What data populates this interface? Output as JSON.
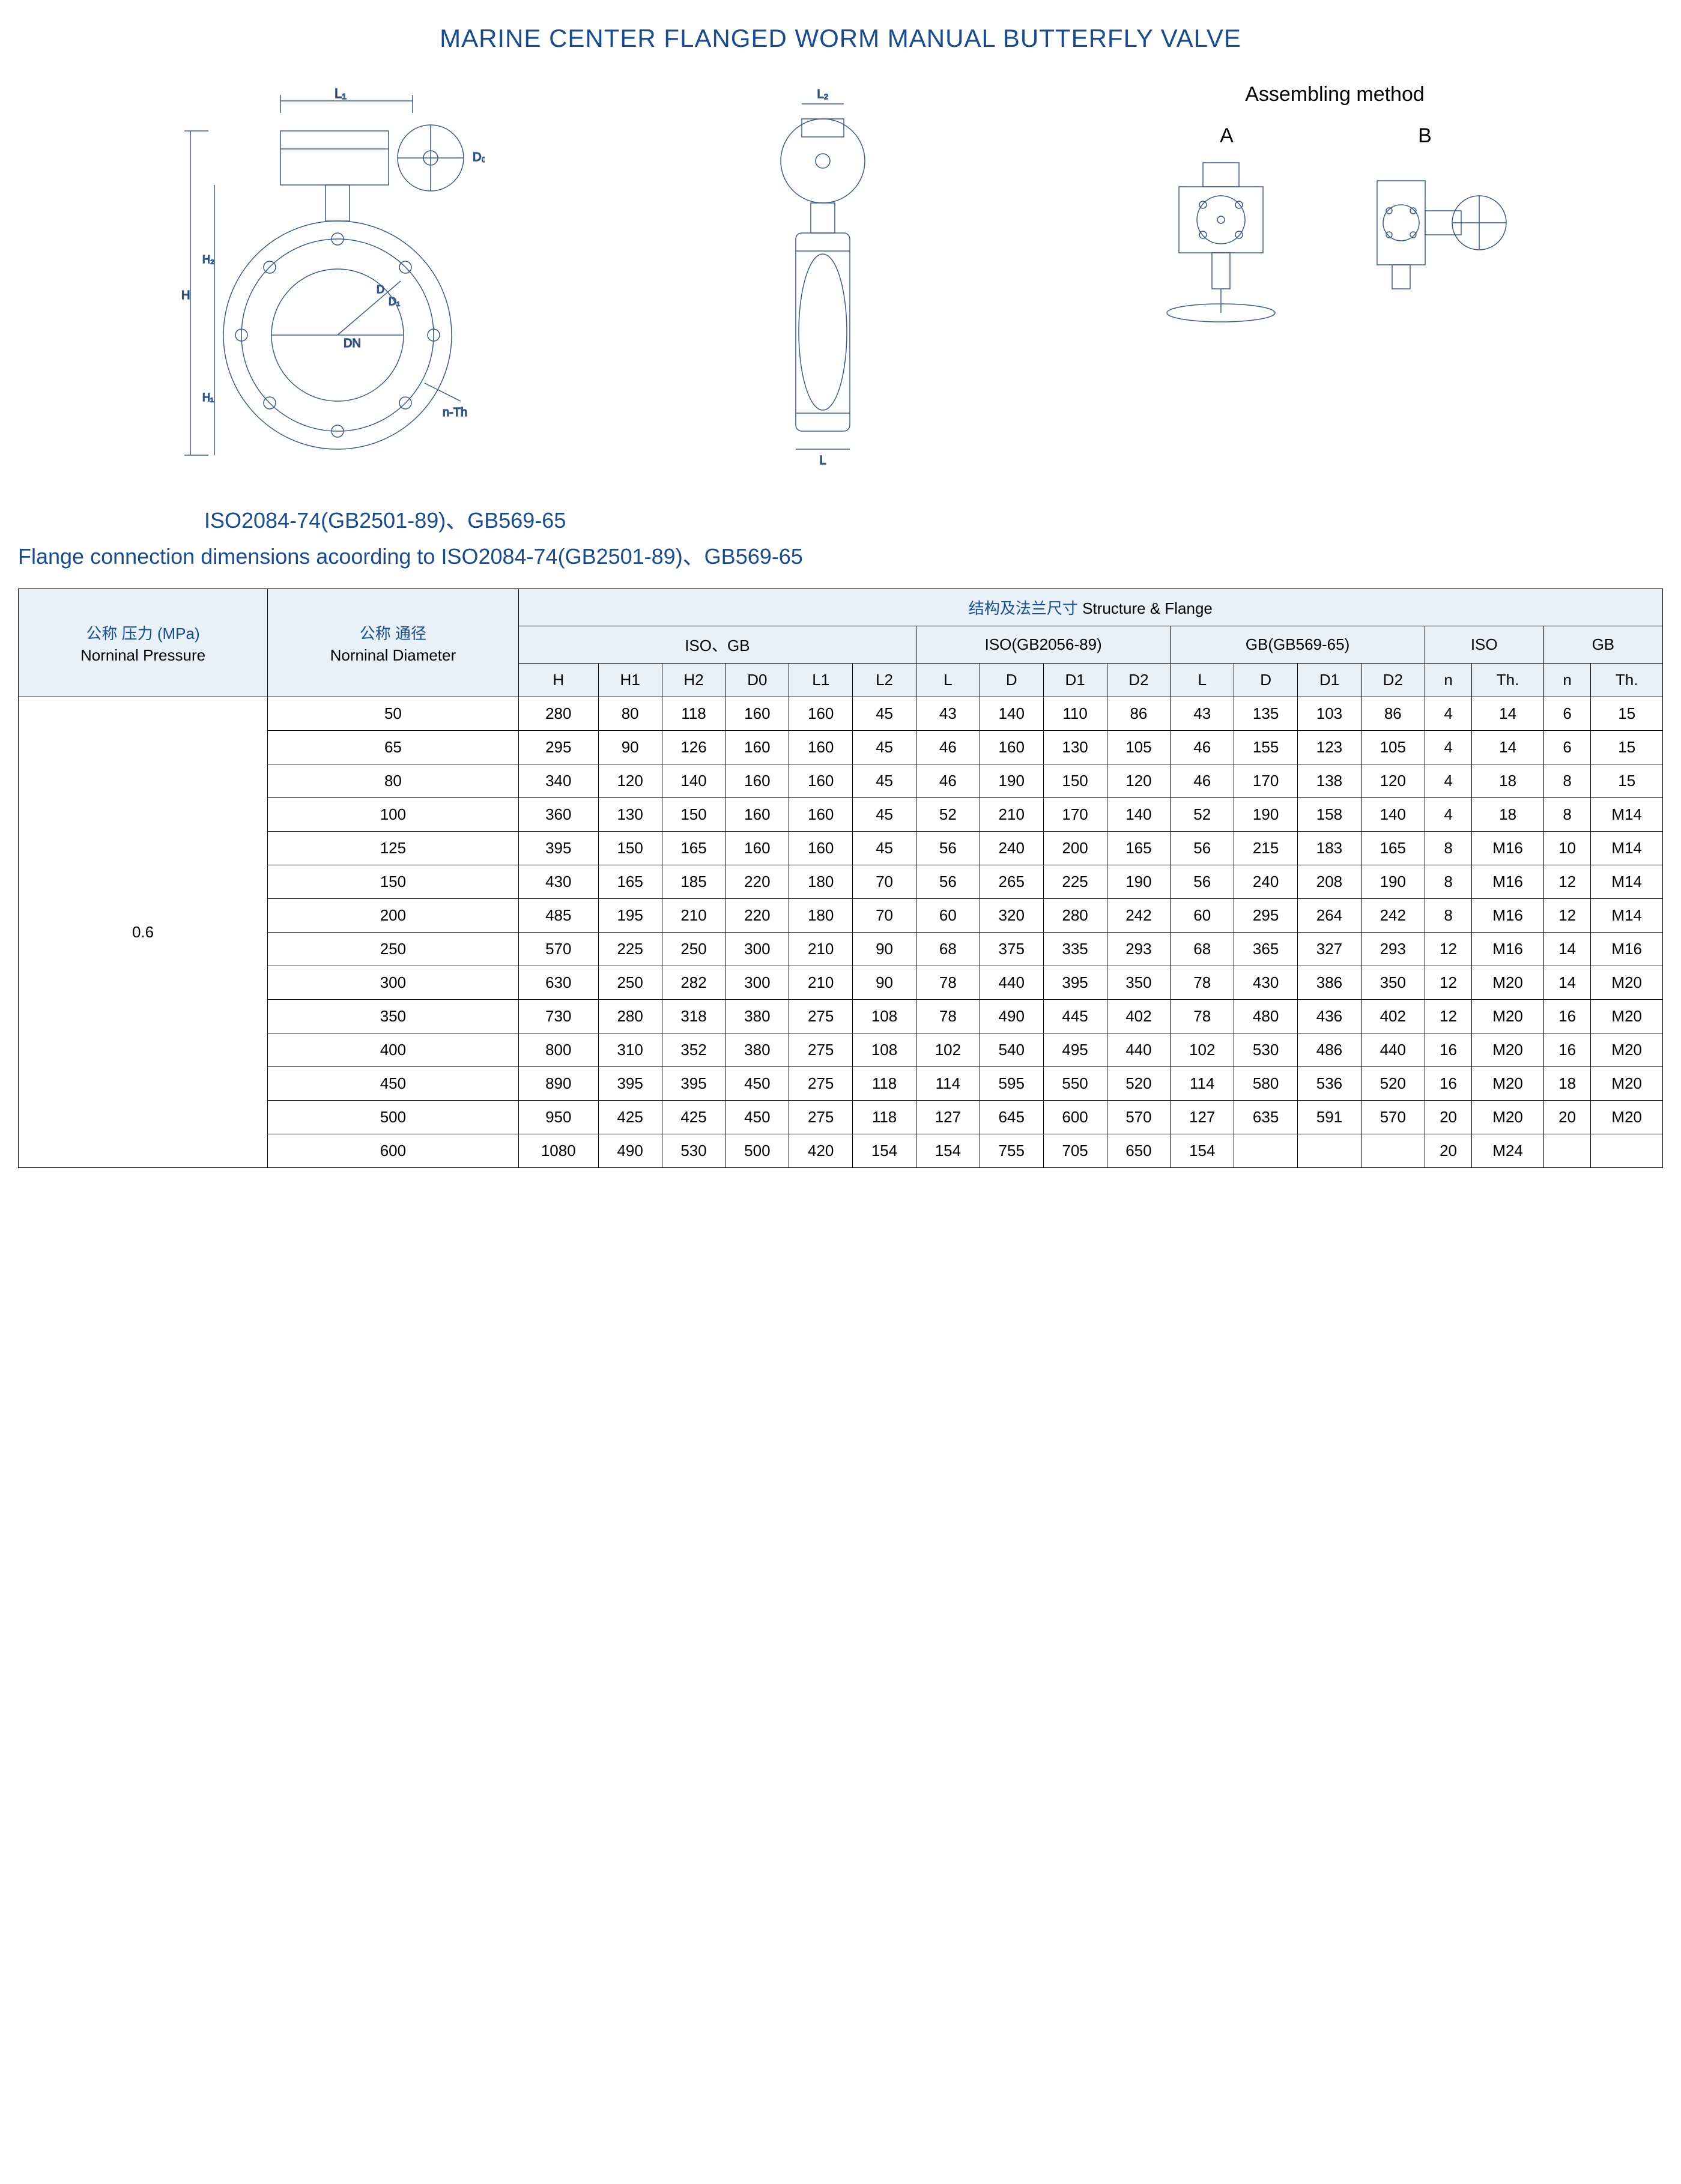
{
  "title": "MARINE CENTER FLANGED WORM MANUAL BUTTERFLY VALVE",
  "assembling": {
    "title": "Assembling method",
    "labelA": "A",
    "labelB": "B"
  },
  "diagram_labels": {
    "L1": "L₁",
    "L2": "L₂",
    "D0": "D₀",
    "H": "H",
    "H1": "H₁",
    "H2": "H₂",
    "D": "D",
    "D1": "D₁",
    "DN": "DN",
    "nTh": "n-Th",
    "L": "L"
  },
  "standards_line": "ISO2084-74(GB2501-89)、GB569-65",
  "flange_line": "Flange connection dimensions acoording to ISO2084-74(GB2501-89)、GB569-65",
  "table": {
    "headers": {
      "pressure_cn": "公称 压力 (MPa)",
      "pressure_en": "Norninal Pressure",
      "diameter_cn": "公称 通径",
      "diameter_en": "Norninal Diameter",
      "structure_flange_cn": "结构及法兰尺寸",
      "structure_flange_en": "Structure & Flange",
      "isoGb": "ISO、GB",
      "iso2056": "ISO(GB2056-89)",
      "gb569": "GB(GB569-65)",
      "iso": "ISO",
      "gb": "GB",
      "cols": [
        "H",
        "H1",
        "H2",
        "D0",
        "L1",
        "L2",
        "L",
        "D",
        "D1",
        "D2",
        "L",
        "D",
        "D1",
        "D2",
        "n",
        "Th.",
        "n",
        "Th."
      ]
    },
    "pressure_value": "0.6",
    "rows": [
      {
        "dia": "50",
        "v": [
          "280",
          "80",
          "118",
          "160",
          "160",
          "45",
          "43",
          "140",
          "110",
          "86",
          "43",
          "135",
          "103",
          "86",
          "4",
          "14",
          "6",
          "15"
        ]
      },
      {
        "dia": "65",
        "v": [
          "295",
          "90",
          "126",
          "160",
          "160",
          "45",
          "46",
          "160",
          "130",
          "105",
          "46",
          "155",
          "123",
          "105",
          "4",
          "14",
          "6",
          "15"
        ]
      },
      {
        "dia": "80",
        "v": [
          "340",
          "120",
          "140",
          "160",
          "160",
          "45",
          "46",
          "190",
          "150",
          "120",
          "46",
          "170",
          "138",
          "120",
          "4",
          "18",
          "8",
          "15"
        ]
      },
      {
        "dia": "100",
        "v": [
          "360",
          "130",
          "150",
          "160",
          "160",
          "45",
          "52",
          "210",
          "170",
          "140",
          "52",
          "190",
          "158",
          "140",
          "4",
          "18",
          "8",
          "M14"
        ]
      },
      {
        "dia": "125",
        "v": [
          "395",
          "150",
          "165",
          "160",
          "160",
          "45",
          "56",
          "240",
          "200",
          "165",
          "56",
          "215",
          "183",
          "165",
          "8",
          "M16",
          "10",
          "M14"
        ]
      },
      {
        "dia": "150",
        "v": [
          "430",
          "165",
          "185",
          "220",
          "180",
          "70",
          "56",
          "265",
          "225",
          "190",
          "56",
          "240",
          "208",
          "190",
          "8",
          "M16",
          "12",
          "M14"
        ]
      },
      {
        "dia": "200",
        "v": [
          "485",
          "195",
          "210",
          "220",
          "180",
          "70",
          "60",
          "320",
          "280",
          "242",
          "60",
          "295",
          "264",
          "242",
          "8",
          "M16",
          "12",
          "M14"
        ]
      },
      {
        "dia": "250",
        "v": [
          "570",
          "225",
          "250",
          "300",
          "210",
          "90",
          "68",
          "375",
          "335",
          "293",
          "68",
          "365",
          "327",
          "293",
          "12",
          "M16",
          "14",
          "M16"
        ]
      },
      {
        "dia": "300",
        "v": [
          "630",
          "250",
          "282",
          "300",
          "210",
          "90",
          "78",
          "440",
          "395",
          "350",
          "78",
          "430",
          "386",
          "350",
          "12",
          "M20",
          "14",
          "M20"
        ]
      },
      {
        "dia": "350",
        "v": [
          "730",
          "280",
          "318",
          "380",
          "275",
          "108",
          "78",
          "490",
          "445",
          "402",
          "78",
          "480",
          "436",
          "402",
          "12",
          "M20",
          "16",
          "M20"
        ]
      },
      {
        "dia": "400",
        "v": [
          "800",
          "310",
          "352",
          "380",
          "275",
          "108",
          "102",
          "540",
          "495",
          "440",
          "102",
          "530",
          "486",
          "440",
          "16",
          "M20",
          "16",
          "M20"
        ]
      },
      {
        "dia": "450",
        "v": [
          "890",
          "395",
          "395",
          "450",
          "275",
          "118",
          "114",
          "595",
          "550",
          "520",
          "114",
          "580",
          "536",
          "520",
          "16",
          "M20",
          "18",
          "M20"
        ]
      },
      {
        "dia": "500",
        "v": [
          "950",
          "425",
          "425",
          "450",
          "275",
          "118",
          "127",
          "645",
          "600",
          "570",
          "127",
          "635",
          "591",
          "570",
          "20",
          "M20",
          "20",
          "M20"
        ]
      },
      {
        "dia": "600",
        "v": [
          "1080",
          "490",
          "530",
          "500",
          "420",
          "154",
          "154",
          "755",
          "705",
          "650",
          "154",
          "",
          "",
          "",
          "20",
          "M24",
          "",
          ""
        ]
      }
    ]
  },
  "colors": {
    "title": "#1a4b8c",
    "border": "#000000",
    "header_bg": "#e8f0f8",
    "diagram_stroke": "#3a5a8a"
  }
}
